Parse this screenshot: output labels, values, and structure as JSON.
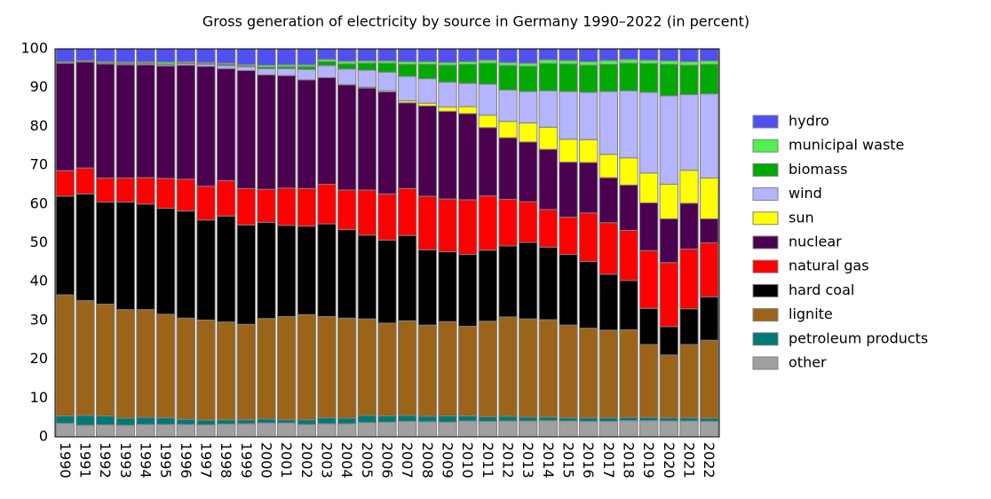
{
  "chart_data": {
    "type": "stacked_bar",
    "title": "Gross generation of electricity by source in Germany 1990–2022 (in percent)",
    "categories": [
      "1990",
      "1991",
      "1992",
      "1993",
      "1994",
      "1995",
      "1996",
      "1997",
      "1998",
      "1999",
      "2000",
      "2001",
      "2002",
      "2003",
      "2004",
      "2005",
      "2006",
      "2007",
      "2008",
      "2009",
      "2010",
      "2011",
      "2012",
      "2013",
      "2014",
      "2015",
      "2016",
      "2017",
      "2018",
      "2019",
      "2020",
      "2021",
      "2022"
    ],
    "ylim": [
      0,
      100
    ],
    "yticks": [
      0,
      10,
      20,
      30,
      40,
      50,
      60,
      70,
      80,
      90,
      100
    ],
    "grid": false,
    "series": [
      {
        "name": "other",
        "color": "#a0a0a0",
        "values": [
          3.5,
          3.0,
          3.1,
          3.0,
          3.2,
          3.2,
          3.2,
          3.1,
          3.3,
          3.4,
          3.6,
          3.6,
          3.2,
          3.4,
          3.4,
          3.7,
          3.8,
          4.0,
          3.9,
          3.8,
          4.1,
          4.0,
          4.1,
          4.1,
          4.2,
          4.1,
          4.0,
          4.0,
          4.2,
          4.2,
          4.1,
          4.1,
          4.0
        ]
      },
      {
        "name": "petroleum products",
        "color": "#007878",
        "values": [
          1.9,
          2.5,
          2.3,
          1.8,
          1.8,
          1.7,
          1.3,
          1.2,
          1.1,
          1.0,
          1.0,
          0.8,
          1.2,
          1.5,
          1.4,
          1.8,
          1.6,
          1.5,
          1.4,
          1.6,
          1.3,
          1.2,
          1.2,
          1.0,
          0.9,
          0.8,
          0.9,
          0.9,
          0.8,
          0.8,
          0.8,
          0.8,
          0.8
        ]
      },
      {
        "name": "lignite",
        "color": "#9b6419",
        "values": [
          31.2,
          29.6,
          28.8,
          28.0,
          27.8,
          26.7,
          26.1,
          25.8,
          25.2,
          24.6,
          25.9,
          26.6,
          27.1,
          26.1,
          25.8,
          24.9,
          23.9,
          24.4,
          23.5,
          24.3,
          23.1,
          24.6,
          25.6,
          25.3,
          25.1,
          23.9,
          23.1,
          22.6,
          22.6,
          18.8,
          16.2,
          18.9,
          20.1
        ]
      },
      {
        "name": "hard coal",
        "color": "#000000",
        "values": [
          25.4,
          27.5,
          26.3,
          27.7,
          27.2,
          27.3,
          27.6,
          25.8,
          27.3,
          25.6,
          24.8,
          23.5,
          22.8,
          23.9,
          22.8,
          21.6,
          21.4,
          22.0,
          19.4,
          18.0,
          18.5,
          18.3,
          18.3,
          19.7,
          18.7,
          18.2,
          17.2,
          14.4,
          12.7,
          9.3,
          7.3,
          9.2,
          11.2
        ]
      },
      {
        "name": "natural gas",
        "color": "#ff0000",
        "values": [
          6.6,
          6.7,
          6.2,
          6.2,
          6.8,
          7.7,
          8.2,
          8.7,
          9.1,
          9.4,
          8.5,
          9.6,
          9.7,
          10.2,
          10.2,
          11.6,
          11.9,
          12.1,
          13.8,
          13.6,
          14.1,
          14.0,
          12.0,
          10.5,
          9.7,
          9.6,
          12.5,
          13.3,
          12.9,
          14.9,
          16.5,
          15.4,
          13.9
        ]
      },
      {
        "name": "nuclear",
        "color": "#4b0050",
        "values": [
          27.7,
          27.3,
          29.4,
          29.2,
          29.1,
          29.0,
          29.4,
          30.9,
          28.9,
          30.4,
          29.5,
          29.0,
          28.0,
          27.5,
          27.1,
          26.3,
          26.3,
          22.1,
          23.3,
          22.6,
          22.2,
          17.6,
          15.9,
          15.4,
          15.5,
          14.2,
          13.0,
          11.6,
          11.7,
          12.3,
          11.3,
          11.8,
          6.2
        ]
      },
      {
        "name": "sun",
        "color": "#ffff00",
        "values": [
          0,
          0,
          0,
          0,
          0,
          0,
          0,
          0,
          0,
          0,
          0,
          0,
          0,
          0,
          0.1,
          0.2,
          0.3,
          0.5,
          0.7,
          1.1,
          1.8,
          3.2,
          4.2,
          4.9,
          5.7,
          5.9,
          5.9,
          6.0,
          7.0,
          7.7,
          8.9,
          8.5,
          10.5
        ]
      },
      {
        "name": "wind",
        "color": "#b4b4ff",
        "values": [
          0,
          0,
          0.1,
          0.2,
          0.3,
          0.3,
          0.4,
          0.5,
          0.8,
          1.0,
          1.6,
          1.8,
          2.7,
          3.1,
          4.0,
          4.4,
          4.8,
          6.3,
          6.3,
          6.4,
          6.0,
          8.0,
          8.1,
          8.1,
          9.4,
          12.3,
          12.2,
          16.2,
          17.3,
          20.8,
          22.8,
          19.5,
          21.7
        ]
      },
      {
        "name": "biomass",
        "color": "#00aa00",
        "values": [
          0.1,
          0.1,
          0.2,
          0.2,
          0.2,
          0.2,
          0.2,
          0.2,
          0.3,
          0.3,
          0.4,
          0.5,
          0.7,
          1.0,
          1.3,
          1.8,
          2.3,
          3.1,
          3.7,
          4.4,
          4.9,
          5.4,
          6.3,
          6.5,
          7.0,
          7.1,
          7.0,
          7.0,
          7.1,
          7.4,
          8.1,
          7.6,
          7.6
        ]
      },
      {
        "name": "municipal waste",
        "color": "#50f050",
        "values": [
          0.3,
          0.3,
          0.3,
          0.3,
          0.3,
          0.5,
          0.3,
          0.3,
          0.3,
          0.3,
          0.5,
          0.5,
          0.5,
          0.6,
          0.7,
          0.6,
          0.6,
          0.7,
          0.7,
          0.7,
          0.7,
          0.8,
          0.8,
          0.8,
          1.0,
          0.9,
          0.9,
          1.0,
          1.0,
          0.9,
          0.9,
          0.9,
          0.9
        ]
      },
      {
        "name": "hydro",
        "color": "#5050f0",
        "values": [
          3.3,
          3.0,
          3.3,
          3.4,
          3.3,
          3.4,
          3.3,
          3.5,
          3.7,
          4.0,
          4.2,
          4.1,
          4.1,
          2.7,
          3.2,
          3.1,
          3.1,
          3.3,
          3.3,
          3.5,
          3.3,
          2.9,
          3.5,
          3.7,
          2.8,
          3.0,
          3.3,
          3.0,
          2.7,
          2.9,
          3.1,
          3.3,
          3.1
        ]
      }
    ]
  }
}
